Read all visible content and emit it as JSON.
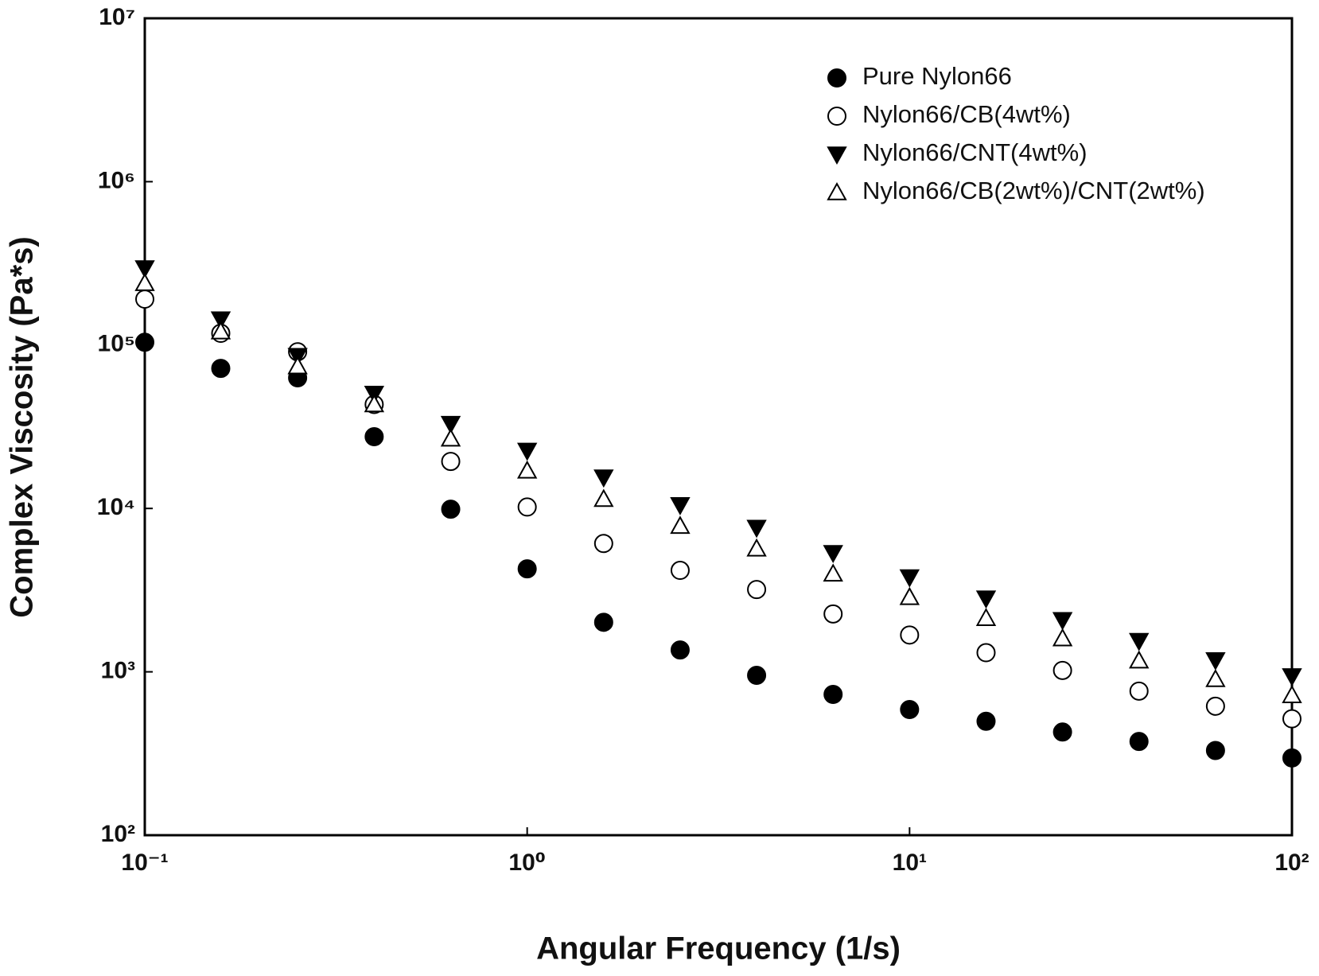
{
  "chart_data": {
    "type": "scatter",
    "xlabel": "Angular Frequency (1/s)",
    "ylabel": "Complex Viscosity (Pa*s)",
    "xscale": "log",
    "yscale": "log",
    "xlim": [
      0.1,
      100
    ],
    "ylim": [
      100,
      10000000
    ],
    "xticks": [
      {
        "value": 0.1,
        "label": "10⁻¹"
      },
      {
        "value": 1,
        "label": "10⁰"
      },
      {
        "value": 10,
        "label": "10¹"
      },
      {
        "value": 100,
        "label": "10²"
      }
    ],
    "yticks": [
      {
        "value": 100,
        "label": "10²"
      },
      {
        "value": 1000,
        "label": "10³"
      },
      {
        "value": 10000,
        "label": "10⁴"
      },
      {
        "value": 100000,
        "label": "10⁵"
      },
      {
        "value": 1000000,
        "label": "10⁶"
      },
      {
        "value": 10000000,
        "label": "10⁷"
      }
    ],
    "legend": "upper right",
    "x": [
      0.1,
      0.158,
      0.251,
      0.398,
      0.631,
      1,
      1.585,
      2.512,
      3.981,
      6.31,
      10,
      15.85,
      25.12,
      39.81,
      63.1,
      100
    ],
    "series": [
      {
        "name": "Pure  Nylon66",
        "color": "#000000",
        "marker": "circle",
        "filled": true,
        "values": [
          104000,
          72000,
          63000,
          27500,
          9900,
          4270,
          2010,
          1360,
          952,
          727,
          588,
          498,
          428,
          375,
          330,
          297
        ]
      },
      {
        "name": "Nylon66/CB(4wt%)",
        "color": "#000000",
        "marker": "circle",
        "filled": false,
        "values": [
          191000,
          118000,
          91000,
          43300,
          19400,
          10200,
          6100,
          4180,
          3190,
          2260,
          1680,
          1310,
          1020,
          762,
          616,
          516
        ]
      },
      {
        "name": "Nylon66/CNT(4wt%)",
        "color": "#000000",
        "marker": "triangle-down",
        "filled": true,
        "values": [
          296000,
          144000,
          86000,
          50500,
          33000,
          22600,
          15500,
          10500,
          7630,
          5350,
          3800,
          2820,
          2080,
          1550,
          1180,
          942
        ]
      },
      {
        "name": "Nylon66/CB(2wt%)/CNT(2wt%)",
        "color": "#000000",
        "marker": "triangle-up",
        "filled": false,
        "values": [
          239000,
          121000,
          74000,
          43300,
          26700,
          17000,
          11400,
          7800,
          5670,
          3980,
          2860,
          2130,
          1600,
          1170,
          900,
          718
        ]
      }
    ]
  }
}
